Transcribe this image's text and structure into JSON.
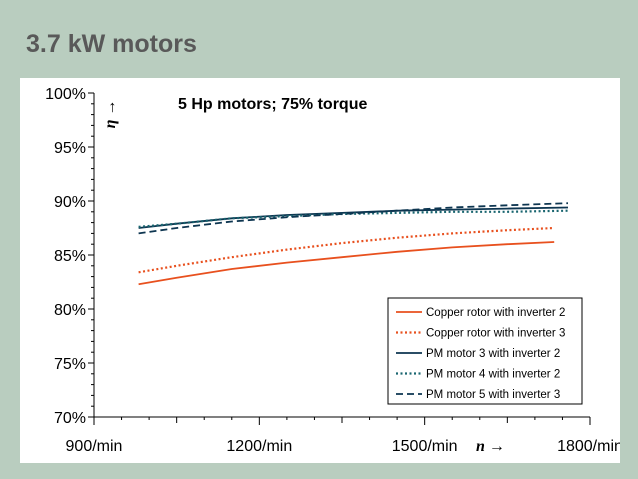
{
  "slide": {
    "title": "3.7 kW motors"
  },
  "chart_data": {
    "type": "line",
    "title": "5 Hp motors; 75% torque",
    "xlabel": "n →",
    "ylabel": "η →",
    "xlim": [
      900,
      1800
    ],
    "ylim": [
      70,
      100
    ],
    "x_ticks": [
      900,
      1200,
      1500,
      1800
    ],
    "x_tick_labels": [
      "900/min",
      "1200/min",
      "1500/min",
      "1800/min"
    ],
    "y_ticks": [
      70,
      75,
      80,
      85,
      90,
      95,
      100
    ],
    "y_tick_labels": [
      "70%",
      "75%",
      "80%",
      "85%",
      "90%",
      "95%",
      "100%"
    ],
    "grid": false,
    "legend_position": "bottom-right",
    "series": [
      {
        "name": "Copper rotor with inverter 2",
        "color": "#e8501e",
        "dash": "solid",
        "x": [
          981,
          1050,
          1150,
          1250,
          1350,
          1450,
          1550,
          1650,
          1735
        ],
        "y": [
          82.3,
          82.9,
          83.7,
          84.3,
          84.8,
          85.3,
          85.7,
          86.0,
          86.2
        ]
      },
      {
        "name": "Copper rotor with inverter 3",
        "color": "#e8501e",
        "dash": "dotted",
        "x": [
          981,
          1050,
          1150,
          1250,
          1350,
          1450,
          1550,
          1650,
          1735
        ],
        "y": [
          83.4,
          84.0,
          84.8,
          85.5,
          86.1,
          86.6,
          87.0,
          87.3,
          87.5
        ]
      },
      {
        "name": "PM motor 3 with inverter 2",
        "color": "#0d3550",
        "dash": "solid",
        "x": [
          981,
          1050,
          1150,
          1250,
          1350,
          1450,
          1550,
          1650,
          1760
        ],
        "y": [
          87.5,
          87.9,
          88.4,
          88.7,
          88.9,
          89.1,
          89.2,
          89.3,
          89.4
        ]
      },
      {
        "name": "PM motor 4 with inverter 2",
        "color": "#1a6670",
        "dash": "dotted",
        "x": [
          981,
          1050,
          1150,
          1250,
          1350,
          1450,
          1550,
          1650,
          1760
        ],
        "y": [
          87.6,
          87.9,
          88.4,
          88.6,
          88.8,
          88.9,
          89.0,
          89.0,
          89.1
        ]
      },
      {
        "name": "PM motor 5 with inverter 3",
        "color": "#0d3550",
        "dash": "dashed",
        "x": [
          981,
          1050,
          1150,
          1250,
          1350,
          1450,
          1550,
          1650,
          1760
        ],
        "y": [
          87.0,
          87.5,
          88.1,
          88.5,
          88.8,
          89.1,
          89.4,
          89.6,
          89.8
        ]
      }
    ]
  }
}
